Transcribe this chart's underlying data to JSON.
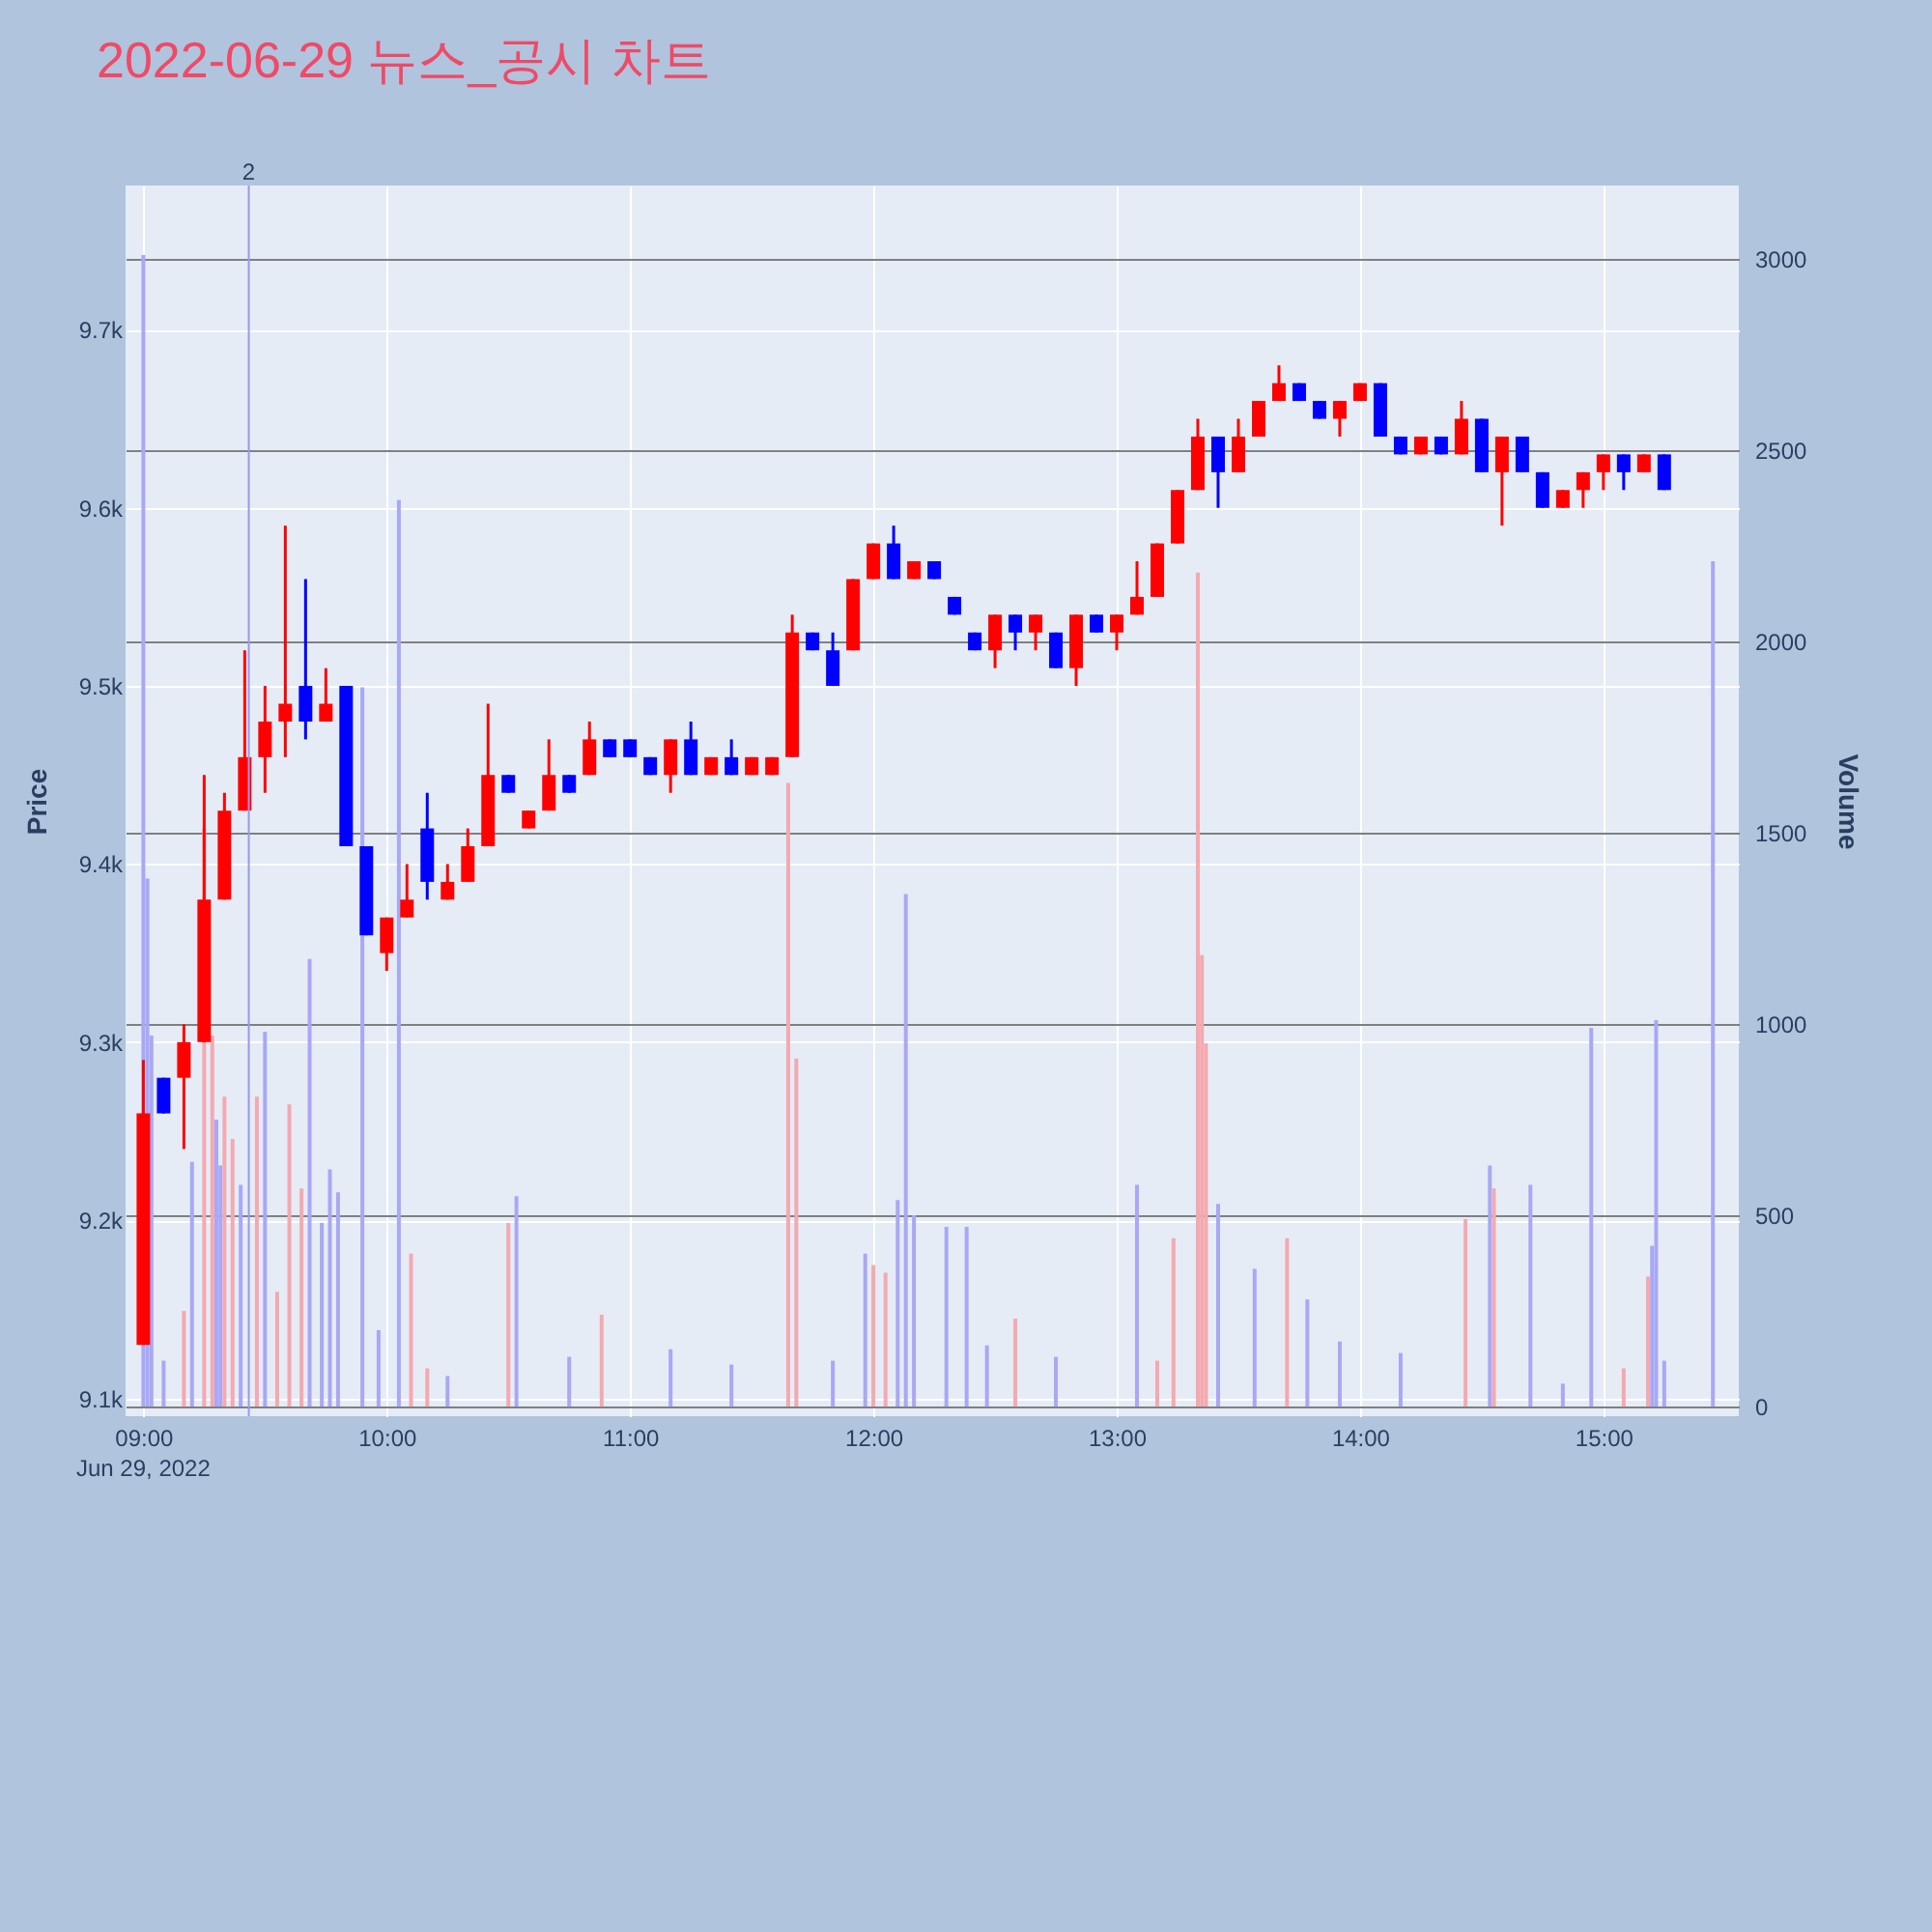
{
  "chart_data": {
    "type": "candlestick",
    "title": "2022-06-29 뉴스_공시 차트",
    "ylabel": "Price",
    "y2label": "Volume",
    "annotations": [
      "Jun 29, 2022"
    ],
    "xlim": [
      "2022-06-29T08:58",
      "2022-06-29T15:31"
    ],
    "xticks": [
      {
        "value": "2022-06-29T09:00",
        "label": "09:00"
      },
      {
        "value": "2022-06-29T10:00",
        "label": "10:00"
      },
      {
        "value": "2022-06-29T11:00",
        "label": "11:00"
      },
      {
        "value": "2022-06-29T12:00",
        "label": "12:00"
      },
      {
        "value": "2022-06-29T13:00",
        "label": "13:00"
      },
      {
        "value": "2022-06-29T14:00",
        "label": "14:00"
      },
      {
        "value": "2022-06-29T15:00",
        "label": "15:00"
      }
    ],
    "ylim": [
      9090,
      9781
    ],
    "yticks": [
      {
        "value": 9100,
        "label": "9.1k"
      },
      {
        "value": 9200,
        "label": "9.2k"
      },
      {
        "value": 9300,
        "label": "9.3k"
      },
      {
        "value": 9400,
        "label": "9.4k"
      },
      {
        "value": 9500,
        "label": "9.5k"
      },
      {
        "value": 9600,
        "label": "9.6k"
      },
      {
        "value": 9700,
        "label": "9.7k"
      }
    ],
    "y2lim": [
      -25,
      3192
    ],
    "y2ticks": [
      0,
      500,
      1000,
      1500,
      2000,
      2500,
      3000
    ],
    "grid": true,
    "ref_lines": [
      {
        "axis": "x",
        "value": "2022-06-29T09:26",
        "label": "2",
        "color": "#9999ee"
      }
    ],
    "series": [
      {
        "x": [
          "2022-06-29T09:00",
          "2022-06-29T09:05",
          "2022-06-29T09:10",
          "2022-06-29T09:15",
          "2022-06-29T09:20",
          "2022-06-29T09:25",
          "2022-06-29T09:30",
          "2022-06-29T09:35",
          "2022-06-29T09:40",
          "2022-06-29T09:45",
          "2022-06-29T09:50",
          "2022-06-29T09:55",
          "2022-06-29T10:00",
          "2022-06-29T10:05",
          "2022-06-29T10:10",
          "2022-06-29T10:15",
          "2022-06-29T10:20",
          "2022-06-29T10:25",
          "2022-06-29T10:30",
          "2022-06-29T10:35",
          "2022-06-29T10:40",
          "2022-06-29T10:45",
          "2022-06-29T10:50",
          "2022-06-29T10:55",
          "2022-06-29T11:00",
          "2022-06-29T11:05",
          "2022-06-29T11:10",
          "2022-06-29T11:15",
          "2022-06-29T11:20",
          "2022-06-29T11:25",
          "2022-06-29T11:30",
          "2022-06-29T11:35",
          "2022-06-29T11:40",
          "2022-06-29T11:45",
          "2022-06-29T11:50",
          "2022-06-29T11:55",
          "2022-06-29T12:00",
          "2022-06-29T12:05",
          "2022-06-29T12:10",
          "2022-06-29T12:15",
          "2022-06-29T12:20",
          "2022-06-29T12:25",
          "2022-06-29T12:30",
          "2022-06-29T12:35",
          "2022-06-29T12:40",
          "2022-06-29T12:45",
          "2022-06-29T12:50",
          "2022-06-29T12:55",
          "2022-06-29T13:00",
          "2022-06-29T13:05",
          "2022-06-29T13:10",
          "2022-06-29T13:15",
          "2022-06-29T13:20",
          "2022-06-29T13:25",
          "2022-06-29T13:30",
          "2022-06-29T13:35",
          "2022-06-29T13:40",
          "2022-06-29T13:45",
          "2022-06-29T13:50",
          "2022-06-29T13:55",
          "2022-06-29T14:00",
          "2022-06-29T14:05",
          "2022-06-29T14:10",
          "2022-06-29T14:15",
          "2022-06-29T14:20",
          "2022-06-29T14:25",
          "2022-06-29T14:30",
          "2022-06-29T14:35",
          "2022-06-29T14:40",
          "2022-06-29T14:45",
          "2022-06-29T14:50",
          "2022-06-29T14:55",
          "2022-06-29T15:00",
          "2022-06-29T15:05",
          "2022-06-29T15:10",
          "2022-06-29T15:15"
        ],
        "ohlc": [
          [
            9130,
            9290,
            9130,
            9260
          ],
          [
            9280,
            9280,
            9260,
            9260
          ],
          [
            9280,
            9310,
            9240,
            9300
          ],
          [
            9300,
            9450,
            9300,
            9380
          ],
          [
            9380,
            9440,
            9380,
            9430
          ],
          [
            9430,
            9520,
            9430,
            9460
          ],
          [
            9460,
            9500,
            9440,
            9480
          ],
          [
            9480,
            9590,
            9460,
            9490
          ],
          [
            9500,
            9560,
            9470,
            9480
          ],
          [
            9480,
            9510,
            9480,
            9490
          ],
          [
            9500,
            9500,
            9410,
            9410
          ],
          [
            9410,
            9410,
            9360,
            9360
          ],
          [
            9350,
            9370,
            9340,
            9370
          ],
          [
            9370,
            9400,
            9370,
            9380
          ],
          [
            9420,
            9440,
            9380,
            9390
          ],
          [
            9380,
            9400,
            9380,
            9390
          ],
          [
            9390,
            9420,
            9390,
            9410
          ],
          [
            9410,
            9490,
            9410,
            9450
          ],
          [
            9450,
            9450,
            9440,
            9440
          ],
          [
            9420,
            9430,
            9420,
            9430
          ],
          [
            9430,
            9470,
            9430,
            9450
          ],
          [
            9450,
            9450,
            9440,
            9440
          ],
          [
            9450,
            9480,
            9450,
            9470
          ],
          [
            9470,
            9470,
            9460,
            9460
          ],
          [
            9470,
            9470,
            9460,
            9460
          ],
          [
            9460,
            9460,
            9450,
            9450
          ],
          [
            9450,
            9470,
            9440,
            9470
          ],
          [
            9470,
            9480,
            9450,
            9450
          ],
          [
            9450,
            9460,
            9450,
            9460
          ],
          [
            9460,
            9470,
            9450,
            9450
          ],
          [
            9450,
            9460,
            9450,
            9460
          ],
          [
            9450,
            9460,
            9450,
            9460
          ],
          [
            9460,
            9540,
            9460,
            9530
          ],
          [
            9530,
            9530,
            9520,
            9520
          ],
          [
            9520,
            9530,
            9500,
            9500
          ],
          [
            9520,
            9560,
            9520,
            9560
          ],
          [
            9560,
            9580,
            9560,
            9580
          ],
          [
            9580,
            9590,
            9560,
            9560
          ],
          [
            9560,
            9570,
            9560,
            9570
          ],
          [
            9570,
            9570,
            9560,
            9560
          ],
          [
            9550,
            9550,
            9540,
            9540
          ],
          [
            9530,
            9530,
            9520,
            9520
          ],
          [
            9520,
            9540,
            9510,
            9540
          ],
          [
            9540,
            9540,
            9520,
            9530
          ],
          [
            9530,
            9540,
            9520,
            9540
          ],
          [
            9530,
            9530,
            9510,
            9510
          ],
          [
            9510,
            9540,
            9500,
            9540
          ],
          [
            9540,
            9540,
            9530,
            9530
          ],
          [
            9530,
            9540,
            9520,
            9540
          ],
          [
            9540,
            9570,
            9540,
            9550
          ],
          [
            9550,
            9580,
            9550,
            9580
          ],
          [
            9580,
            9610,
            9580,
            9610
          ],
          [
            9610,
            9650,
            9610,
            9640
          ],
          [
            9640,
            9640,
            9600,
            9620
          ],
          [
            9620,
            9650,
            9620,
            9640
          ],
          [
            9640,
            9660,
            9640,
            9660
          ],
          [
            9660,
            9680,
            9660,
            9670
          ],
          [
            9670,
            9670,
            9660,
            9660
          ],
          [
            9660,
            9660,
            9650,
            9650
          ],
          [
            9650,
            9660,
            9640,
            9660
          ],
          [
            9660,
            9670,
            9660,
            9670
          ],
          [
            9670,
            9670,
            9640,
            9640
          ],
          [
            9640,
            9640,
            9630,
            9630
          ],
          [
            9630,
            9640,
            9630,
            9640
          ],
          [
            9640,
            9640,
            9630,
            9630
          ],
          [
            9630,
            9660,
            9630,
            9650
          ],
          [
            9650,
            9650,
            9620,
            9620
          ],
          [
            9620,
            9640,
            9590,
            9640
          ],
          [
            9640,
            9640,
            9620,
            9620
          ],
          [
            9620,
            9620,
            9600,
            9600
          ],
          [
            9600,
            9610,
            9600,
            9610
          ],
          [
            9610,
            9620,
            9600,
            9620
          ],
          [
            9620,
            9630,
            9610,
            9630
          ],
          [
            9630,
            9630,
            9610,
            9620
          ],
          [
            9620,
            9630,
            9620,
            9630
          ],
          [
            9630,
            9630,
            9610,
            9610
          ]
        ],
        "colors": [
          "#ff0000",
          "#0000ff",
          "#ff0000",
          "#ff0000",
          "#ff0000",
          "#ff0000",
          "#ff0000",
          "#ff0000",
          "#0000ff",
          "#ff0000",
          "#0000ff",
          "#0000ff",
          "#ff0000",
          "#ff0000",
          "#0000ff",
          "#ff0000",
          "#ff0000",
          "#ff0000",
          "#0000ff",
          "#ff0000",
          "#ff0000",
          "#0000ff",
          "#ff0000",
          "#0000ff",
          "#0000ff",
          "#0000ff",
          "#ff0000",
          "#0000ff",
          "#ff0000",
          "#0000ff",
          "#ff0000",
          "#ff0000",
          "#ff0000",
          "#0000ff",
          "#0000ff",
          "#ff0000",
          "#ff0000",
          "#0000ff",
          "#ff0000",
          "#0000ff",
          "#0000ff",
          "#0000ff",
          "#ff0000",
          "#0000ff",
          "#ff0000",
          "#0000ff",
          "#ff0000",
          "#0000ff",
          "#ff0000",
          "#ff0000",
          "#ff0000",
          "#ff0000",
          "#ff0000",
          "#0000ff",
          "#ff0000",
          "#ff0000",
          "#ff0000",
          "#0000ff",
          "#0000ff",
          "#ff0000",
          "#ff0000",
          "#0000ff",
          "#0000ff",
          "#ff0000",
          "#0000ff",
          "#ff0000",
          "#0000ff",
          "#ff0000",
          "#0000ff",
          "#0000ff",
          "#ff0000",
          "#ff0000",
          "#ff0000",
          "#0000ff",
          "#ff0000",
          "#0000ff"
        ]
      },
      {
        "type": "bar",
        "axis": "y2",
        "x": [
          "2022-06-29T09:00",
          "2022-06-29T09:01",
          "2022-06-29T09:02",
          "2022-06-29T09:05",
          "2022-06-29T09:10",
          "2022-06-29T09:12",
          "2022-06-29T09:15",
          "2022-06-29T09:17",
          "2022-06-29T09:18",
          "2022-06-29T09:19",
          "2022-06-29T09:20",
          "2022-06-29T09:22",
          "2022-06-29T09:24",
          "2022-06-29T09:28",
          "2022-06-29T09:30",
          "2022-06-29T09:33",
          "2022-06-29T09:36",
          "2022-06-29T09:39",
          "2022-06-29T09:41",
          "2022-06-29T09:44",
          "2022-06-29T09:46",
          "2022-06-29T09:48",
          "2022-06-29T09:54",
          "2022-06-29T09:58",
          "2022-06-29T10:03",
          "2022-06-29T10:06",
          "2022-06-29T10:10",
          "2022-06-29T10:15",
          "2022-06-29T10:30",
          "2022-06-29T10:32",
          "2022-06-29T10:45",
          "2022-06-29T10:53",
          "2022-06-29T11:10",
          "2022-06-29T11:25",
          "2022-06-29T11:39",
          "2022-06-29T11:41",
          "2022-06-29T11:50",
          "2022-06-29T11:58",
          "2022-06-29T12:00",
          "2022-06-29T12:03",
          "2022-06-29T12:06",
          "2022-06-29T12:08",
          "2022-06-29T12:10",
          "2022-06-29T12:18",
          "2022-06-29T12:23",
          "2022-06-29T12:28",
          "2022-06-29T12:35",
          "2022-06-29T12:45",
          "2022-06-29T13:05",
          "2022-06-29T13:10",
          "2022-06-29T13:14",
          "2022-06-29T13:20",
          "2022-06-29T13:21",
          "2022-06-29T13:22",
          "2022-06-29T13:25",
          "2022-06-29T13:34",
          "2022-06-29T13:42",
          "2022-06-29T13:47",
          "2022-06-29T13:55",
          "2022-06-29T14:10",
          "2022-06-29T14:26",
          "2022-06-29T14:32",
          "2022-06-29T14:33",
          "2022-06-29T14:42",
          "2022-06-29T14:50",
          "2022-06-29T14:57",
          "2022-06-29T15:05",
          "2022-06-29T15:11",
          "2022-06-29T15:12",
          "2022-06-29T15:13",
          "2022-06-29T15:15",
          "2022-06-29T15:27"
        ],
        "values": [
          3010,
          1380,
          970,
          120,
          250,
          640,
          1510,
          970,
          750,
          630,
          810,
          700,
          580,
          810,
          980,
          300,
          790,
          570,
          1170,
          480,
          620,
          560,
          1880,
          200,
          2370,
          400,
          100,
          80,
          480,
          550,
          130,
          240,
          150,
          110,
          1630,
          910,
          120,
          400,
          370,
          350,
          540,
          1340,
          500,
          470,
          470,
          160,
          230,
          130,
          580,
          120,
          440,
          2180,
          1180,
          950,
          530,
          360,
          440,
          280,
          170,
          140,
          490,
          630,
          570,
          580,
          60,
          990,
          100,
          340,
          420,
          1010,
          120,
          2210
        ],
        "colors": [
          "#a8a8f6",
          "#a8a8f6",
          "#a8a8f6",
          "#a8a8f6",
          "#f4a9b0",
          "#a8a8f6",
          "#f4a9b0",
          "#f4a9b0",
          "#a8a8f6",
          "#a8a8f6",
          "#f4a9b0",
          "#f4a9b0",
          "#a8a8f6",
          "#f4a9b0",
          "#a8a8f6",
          "#f4a9b0",
          "#f4a9b0",
          "#f4a9b0",
          "#a8a8f6",
          "#a8a8f6",
          "#a8a8f6",
          "#a8a8f6",
          "#a8a8f6",
          "#a8a8f6",
          "#a8a8f6",
          "#f4a9b0",
          "#f4a9b0",
          "#a8a8f6",
          "#f4a9b0",
          "#a8a8f6",
          "#a8a8f6",
          "#f4a9b0",
          "#a8a8f6",
          "#a8a8f6",
          "#f4a9b0",
          "#f4a9b0",
          "#a8a8f6",
          "#a8a8f6",
          "#f4a9b0",
          "#f4a9b0",
          "#a8a8f6",
          "#a8a8f6",
          "#a8a8f6",
          "#a8a8f6",
          "#a8a8f6",
          "#a8a8f6",
          "#f4a9b0",
          "#a8a8f6",
          "#a8a8f6",
          "#f4a9b0",
          "#f4a9b0",
          "#f4a9b0",
          "#f4a9b0",
          "#f4a9b0",
          "#a8a8f6",
          "#a8a8f6",
          "#f4a9b0",
          "#a8a8f6",
          "#a8a8f6",
          "#a8a8f6",
          "#f4a9b0",
          "#a8a8f6",
          "#f4a9b0",
          "#a8a8f6",
          "#a8a8f6",
          "#a8a8f6",
          "#f4a9b0",
          "#f4a9b0",
          "#a8a8f6",
          "#a8a8f6",
          "#a8a8f6",
          "#a8a8f6"
        ]
      }
    ]
  }
}
